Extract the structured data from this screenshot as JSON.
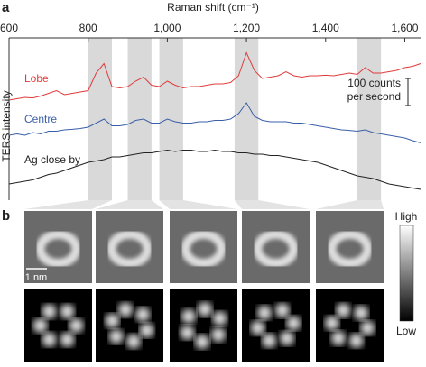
{
  "panel_labels": [
    "a",
    "b"
  ],
  "chart_data": {
    "type": "line",
    "x_label": "Raman shift (cm⁻¹)",
    "y_label": "TERS intensity",
    "xlim": [
      600,
      1640
    ],
    "xticks": [
      600,
      800,
      {
        "value": 1000,
        "label": "1,000"
      },
      {
        "value": 1200,
        "label": "1,200"
      },
      {
        "value": 1400,
        "label": "1,400"
      },
      {
        "value": 1600,
        "label": "1,600"
      }
    ],
    "ylim": [
      0,
      600
    ],
    "scale_bar": 100,
    "scale_bar_label": [
      "100 counts",
      "per second"
    ],
    "highlights": [
      [
        800,
        860
      ],
      [
        900,
        960
      ],
      [
        980,
        1040
      ],
      [
        1170,
        1230
      ],
      [
        1480,
        1540
      ]
    ],
    "x": [
      600,
      620,
      640,
      660,
      680,
      700,
      720,
      740,
      760,
      780,
      800,
      820,
      840,
      860,
      880,
      900,
      920,
      940,
      960,
      980,
      1000,
      1020,
      1040,
      1060,
      1080,
      1100,
      1120,
      1140,
      1160,
      1180,
      1200,
      1220,
      1240,
      1260,
      1280,
      1300,
      1320,
      1340,
      1360,
      1380,
      1400,
      1420,
      1440,
      1460,
      1480,
      1500,
      1520,
      1540,
      1560,
      1580,
      1600,
      1620,
      1640
    ],
    "series": [
      {
        "name": "Lobe",
        "color": "#e03c3c",
        "values": [
          370,
          375,
          380,
          378,
          385,
          395,
          405,
          390,
          395,
          400,
          405,
          470,
          505,
          420,
          415,
          420,
          440,
          455,
          425,
          420,
          440,
          425,
          415,
          420,
          420,
          425,
          430,
          430,
          435,
          460,
          545,
          480,
          450,
          455,
          460,
          475,
          460,
          455,
          460,
          460,
          462,
          460,
          465,
          470,
          465,
          490,
          470,
          470,
          475,
          480,
          490,
          495,
          505
        ]
      },
      {
        "name": "Centre",
        "color": "#3a5fa8",
        "values": [
          240,
          245,
          240,
          250,
          245,
          255,
          255,
          260,
          262,
          265,
          270,
          285,
          300,
          275,
          275,
          280,
          295,
          300,
          285,
          285,
          300,
          290,
          285,
          285,
          290,
          290,
          295,
          295,
          300,
          320,
          360,
          310,
          295,
          290,
          290,
          290,
          285,
          285,
          280,
          275,
          270,
          265,
          260,
          258,
          255,
          260,
          250,
          245,
          240,
          235,
          230,
          220,
          212
        ]
      },
      {
        "name": "Ag close by",
        "color": "#222222",
        "values": [
          60,
          65,
          70,
          75,
          85,
          95,
          100,
          110,
          120,
          130,
          140,
          145,
          150,
          160,
          160,
          165,
          170,
          175,
          175,
          180,
          185,
          180,
          185,
          185,
          180,
          180,
          185,
          180,
          180,
          175,
          175,
          170,
          170,
          165,
          165,
          160,
          155,
          150,
          145,
          140,
          130,
          120,
          110,
          100,
          90,
          85,
          80,
          70,
          60,
          55,
          50,
          45,
          40
        ]
      }
    ]
  },
  "panel_b": {
    "scale_label": "1 nm",
    "colorbar": [
      "High",
      "Low"
    ]
  }
}
